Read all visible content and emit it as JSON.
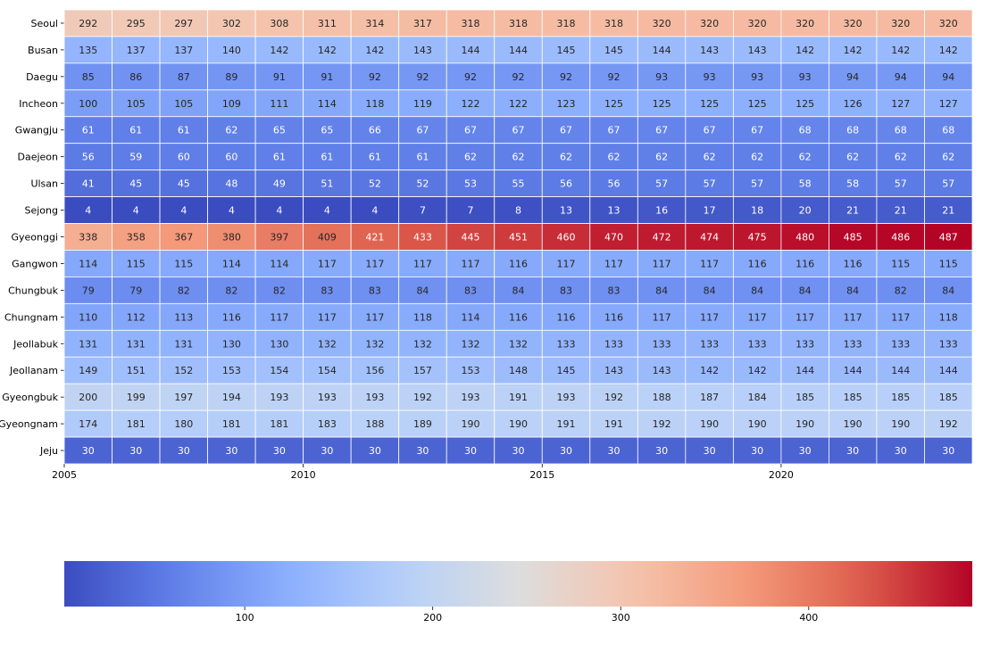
{
  "chart_data": {
    "type": "heatmap",
    "title": "",
    "xlabel": "",
    "ylabel": "",
    "colormap": "coolwarm",
    "x_ticks": [
      {
        "year": 2005,
        "label": "2005"
      },
      {
        "year": 2010,
        "label": "2010"
      },
      {
        "year": 2015,
        "label": "2015"
      },
      {
        "year": 2020,
        "label": "2020"
      }
    ],
    "years": [
      2006,
      2007,
      2008,
      2009,
      2010,
      2011,
      2012,
      2013,
      2014,
      2015,
      2016,
      2017,
      2018,
      2019,
      2020,
      2021,
      2022,
      2023,
      2024
    ],
    "rows": [
      "Seoul",
      "Busan",
      "Daegu",
      "Incheon",
      "Gwangju",
      "Daejeon",
      "Ulsan",
      "Sejong",
      "Gyeonggi",
      "Gangwon",
      "Chungbuk",
      "Chungnam",
      "Jeollabuk",
      "Jeollanam",
      "Gyeongbuk",
      "Gyeongnam",
      "Jeju"
    ],
    "values": [
      [
        292,
        295,
        297,
        302,
        308,
        311,
        314,
        317,
        318,
        318,
        318,
        318,
        320,
        320,
        320,
        320,
        320,
        320,
        320
      ],
      [
        135,
        137,
        137,
        140,
        142,
        142,
        142,
        143,
        144,
        144,
        145,
        145,
        144,
        143,
        143,
        142,
        142,
        142,
        142
      ],
      [
        85,
        86,
        87,
        89,
        91,
        91,
        92,
        92,
        92,
        92,
        92,
        92,
        93,
        93,
        93,
        93,
        94,
        94,
        94
      ],
      [
        100,
        105,
        105,
        109,
        111,
        114,
        118,
        119,
        122,
        122,
        123,
        125,
        125,
        125,
        125,
        125,
        126,
        127,
        127
      ],
      [
        61,
        61,
        61,
        62,
        65,
        65,
        66,
        67,
        67,
        67,
        67,
        67,
        67,
        67,
        67,
        68,
        68,
        68,
        68
      ],
      [
        56,
        59,
        60,
        60,
        61,
        61,
        61,
        61,
        62,
        62,
        62,
        62,
        62,
        62,
        62,
        62,
        62,
        62,
        62
      ],
      [
        41,
        45,
        45,
        48,
        49,
        51,
        52,
        52,
        53,
        55,
        56,
        56,
        57,
        57,
        57,
        58,
        58,
        57,
        57
      ],
      [
        4,
        4,
        4,
        4,
        4,
        4,
        4,
        7,
        7,
        8,
        13,
        13,
        16,
        17,
        18,
        20,
        21,
        21,
        21
      ],
      [
        338,
        358,
        367,
        380,
        397,
        409,
        421,
        433,
        445,
        451,
        460,
        470,
        472,
        474,
        475,
        480,
        485,
        486,
        487
      ],
      [
        114,
        115,
        115,
        114,
        114,
        117,
        117,
        117,
        117,
        116,
        117,
        117,
        117,
        117,
        116,
        116,
        116,
        115,
        115
      ],
      [
        79,
        79,
        82,
        82,
        82,
        83,
        83,
        84,
        83,
        84,
        83,
        83,
        84,
        84,
        84,
        84,
        84,
        82,
        84
      ],
      [
        110,
        112,
        113,
        116,
        117,
        117,
        117,
        118,
        114,
        116,
        116,
        116,
        117,
        117,
        117,
        117,
        117,
        117,
        118
      ],
      [
        131,
        131,
        131,
        130,
        130,
        132,
        132,
        132,
        132,
        132,
        133,
        133,
        133,
        133,
        133,
        133,
        133,
        133,
        133
      ],
      [
        149,
        151,
        152,
        153,
        154,
        154,
        156,
        157,
        153,
        148,
        145,
        143,
        143,
        142,
        142,
        144,
        144,
        144,
        144
      ],
      [
        200,
        199,
        197,
        194,
        193,
        193,
        193,
        192,
        193,
        191,
        193,
        192,
        188,
        187,
        184,
        185,
        185,
        185,
        185
      ],
      [
        174,
        181,
        180,
        181,
        181,
        183,
        188,
        189,
        190,
        190,
        191,
        191,
        192,
        190,
        190,
        190,
        190,
        190,
        192
      ],
      [
        30,
        30,
        30,
        30,
        30,
        30,
        30,
        30,
        30,
        30,
        30,
        30,
        30,
        30,
        30,
        30,
        30,
        30,
        30
      ]
    ],
    "colorbar": {
      "min": 4,
      "max": 487,
      "ticks": [
        100,
        200,
        300,
        400
      ],
      "orientation": "horizontal",
      "position": "bottom"
    }
  }
}
